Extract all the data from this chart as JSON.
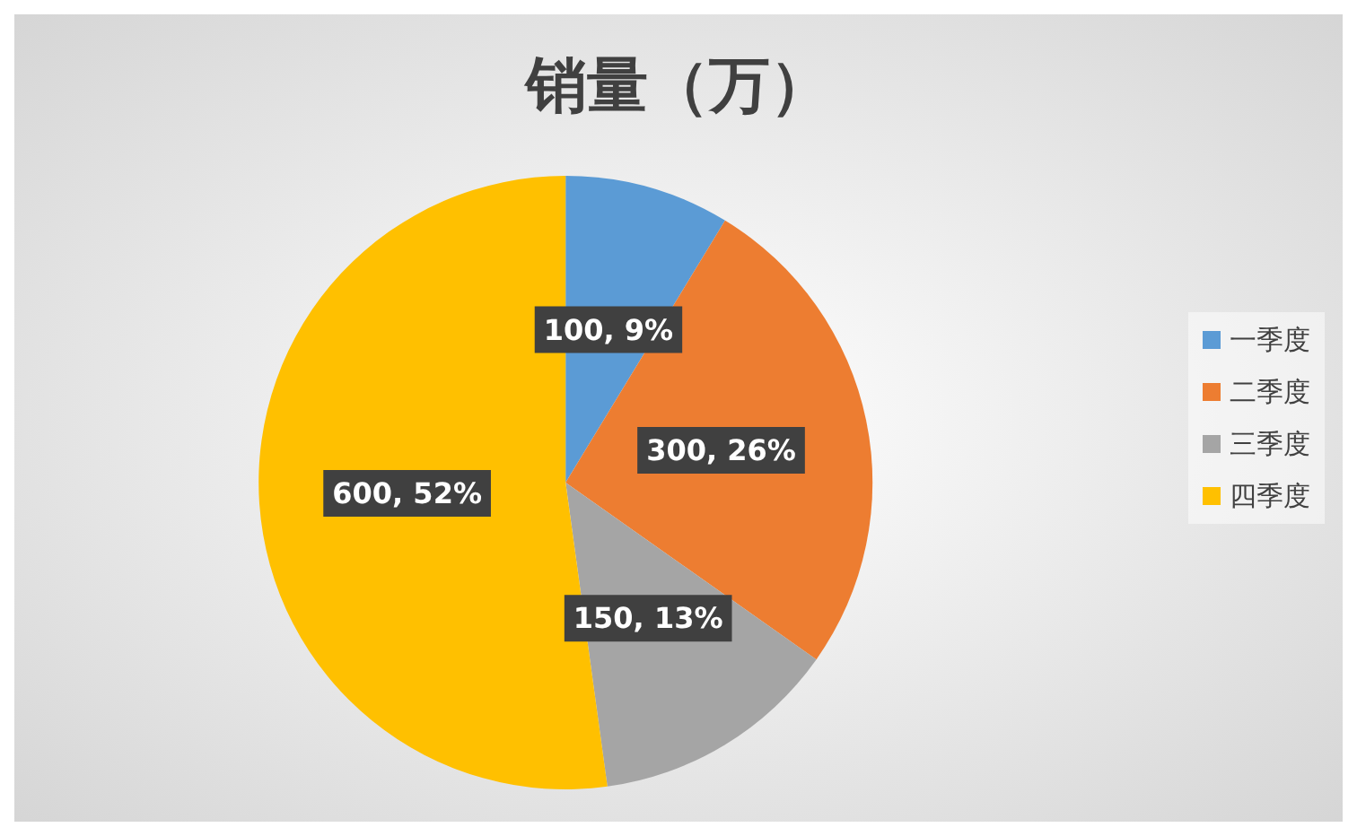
{
  "chart_data": {
    "type": "pie",
    "title": "销量（万）",
    "categories": [
      "一季度",
      "二季度",
      "三季度",
      "四季度"
    ],
    "values": [
      100,
      300,
      150,
      600
    ],
    "colors": [
      "#5b9bd5",
      "#ed7d31",
      "#a5a5a5",
      "#ffc000"
    ],
    "value_labels": [
      "100, 9%",
      "300, 26%",
      "150, 13%",
      "600, 52%"
    ],
    "legend": "right"
  }
}
